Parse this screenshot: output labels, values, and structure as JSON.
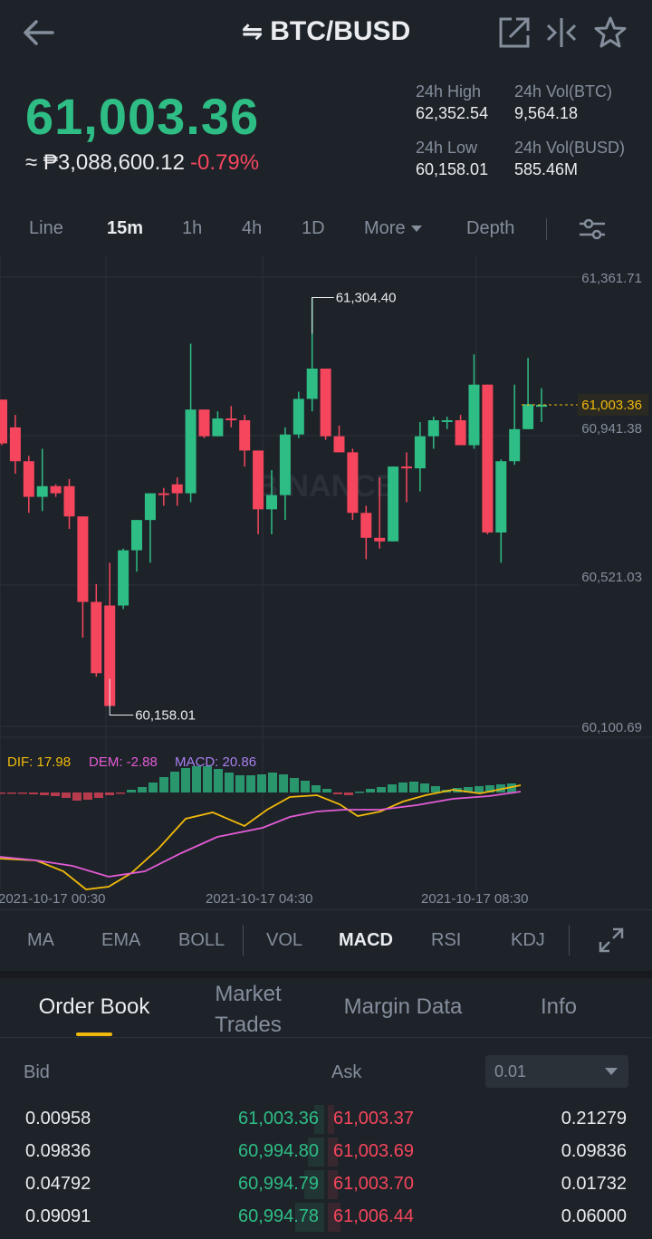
{
  "header": {
    "title": "BTC/BUSD",
    "icons": [
      "back-arrow-icon",
      "swap-icon",
      "external-link-icon",
      "compare-icon",
      "star-icon"
    ]
  },
  "price": {
    "last": "61,003.36",
    "fiat": "≈ ₱3,088,600.12",
    "change": "-0.79%",
    "high_label": "24h High",
    "high": "62,352.54",
    "low_label": "24h Low",
    "low": "60,158.01",
    "vol_btc_label": "24h Vol(BTC)",
    "vol_btc": "9,564.18",
    "vol_busd_label": "24h Vol(BUSD)",
    "vol_busd": "585.46M"
  },
  "intervals": [
    "Line",
    "15m",
    "1h",
    "4h",
    "1D",
    "More",
    "Depth"
  ],
  "active_interval": "15m",
  "chart_data": {
    "type": "candlestick",
    "watermark": "BINANCE",
    "price_ticks": [
      "61,361.71",
      "60,941.38",
      "60,521.03",
      "60,100.69"
    ],
    "current_price": "61,003.36",
    "high_annotation": "61,304.40",
    "low_annotation": "60,158.01",
    "candles": [
      {
        "o": 61018,
        "h": 61018,
        "l": 60890,
        "c": 60895
      },
      {
        "o": 60940,
        "h": 60975,
        "l": 60810,
        "c": 60845
      },
      {
        "o": 60845,
        "h": 60860,
        "l": 60700,
        "c": 60745
      },
      {
        "o": 60745,
        "h": 60880,
        "l": 60705,
        "c": 60775
      },
      {
        "o": 60775,
        "h": 60780,
        "l": 60745,
        "c": 60755
      },
      {
        "o": 60775,
        "h": 60795,
        "l": 60655,
        "c": 60690
      },
      {
        "o": 60690,
        "h": 60690,
        "l": 60350,
        "c": 60450
      },
      {
        "o": 60450,
        "h": 60500,
        "l": 60240,
        "c": 60250
      },
      {
        "o": 60440,
        "h": 60560,
        "l": 60158,
        "c": 60158
      },
      {
        "o": 60440,
        "h": 60600,
        "l": 60430,
        "c": 60595
      },
      {
        "o": 60595,
        "h": 60680,
        "l": 60535,
        "c": 60680
      },
      {
        "o": 60680,
        "h": 60750,
        "l": 60560,
        "c": 60755
      },
      {
        "o": 60755,
        "h": 60770,
        "l": 60720,
        "c": 60750
      },
      {
        "o": 60780,
        "h": 60800,
        "l": 60720,
        "c": 60755
      },
      {
        "o": 60755,
        "h": 61175,
        "l": 60730,
        "c": 60990
      },
      {
        "o": 60990,
        "h": 60990,
        "l": 60910,
        "c": 60915
      },
      {
        "o": 60915,
        "h": 60985,
        "l": 60915,
        "c": 60965
      },
      {
        "o": 60965,
        "h": 61000,
        "l": 60940,
        "c": 60960
      },
      {
        "o": 60960,
        "h": 60975,
        "l": 60830,
        "c": 60875
      },
      {
        "o": 60875,
        "h": 60875,
        "l": 60640,
        "c": 60710
      },
      {
        "o": 60710,
        "h": 60820,
        "l": 60640,
        "c": 60750
      },
      {
        "o": 60750,
        "h": 60940,
        "l": 60680,
        "c": 60920
      },
      {
        "o": 60920,
        "h": 61040,
        "l": 60910,
        "c": 61020
      },
      {
        "o": 61020,
        "h": 61304,
        "l": 60985,
        "c": 61105
      },
      {
        "o": 61105,
        "h": 61105,
        "l": 60905,
        "c": 60915
      },
      {
        "o": 60915,
        "h": 60945,
        "l": 60870,
        "c": 60870
      },
      {
        "o": 60870,
        "h": 60880,
        "l": 60680,
        "c": 60700
      },
      {
        "o": 60700,
        "h": 60720,
        "l": 60570,
        "c": 60630
      },
      {
        "o": 60630,
        "h": 60800,
        "l": 60600,
        "c": 60620
      },
      {
        "o": 60620,
        "h": 60830,
        "l": 60620,
        "c": 60830
      },
      {
        "o": 60830,
        "h": 60870,
        "l": 60730,
        "c": 60825
      },
      {
        "o": 60825,
        "h": 60955,
        "l": 60760,
        "c": 60915
      },
      {
        "o": 60915,
        "h": 60970,
        "l": 60880,
        "c": 60960
      },
      {
        "o": 60960,
        "h": 60970,
        "l": 60935,
        "c": 60960
      },
      {
        "o": 60960,
        "h": 60975,
        "l": 60890,
        "c": 60890
      },
      {
        "o": 60890,
        "h": 61145,
        "l": 60880,
        "c": 61060
      },
      {
        "o": 61060,
        "h": 61060,
        "l": 60640,
        "c": 60645
      },
      {
        "o": 60645,
        "h": 60850,
        "l": 60560,
        "c": 60845
      },
      {
        "o": 60845,
        "h": 61060,
        "l": 60835,
        "c": 60935
      },
      {
        "o": 60935,
        "h": 61135,
        "l": 60935,
        "c": 61005
      },
      {
        "o": 61003,
        "h": 61050,
        "l": 60955,
        "c": 61003
      }
    ],
    "macd": {
      "dif_label": "DIF: 17.98",
      "dem_label": "DEM: -2.88",
      "macd_label": "MACD: 20.86"
    },
    "x_ticks": [
      "2021-10-17 00:30",
      "2021-10-17 04:30",
      "2021-10-17 08:30"
    ]
  },
  "indicators": [
    "MA",
    "EMA",
    "BOLL",
    "VOL",
    "MACD",
    "RSI",
    "KDJ"
  ],
  "active_indicator": "MACD",
  "order_tabs": [
    "Order Book",
    "Market Trades",
    "Margin Data",
    "Info"
  ],
  "order_tabs_display": [
    "Order Book",
    "Market",
    "Trades",
    "Margin Data",
    "Info"
  ],
  "book": {
    "bid_label": "Bid",
    "ask_label": "Ask",
    "precision": "0.01",
    "rows": [
      {
        "bid_qty": "0.00958",
        "bid_price": "61,003.36",
        "ask_price": "61,003.37",
        "ask_qty": "0.21279",
        "bid_depth": 0.03,
        "ask_depth": 0.02
      },
      {
        "bid_qty": "0.09836",
        "bid_price": "60,994.80",
        "ask_price": "61,003.69",
        "ask_qty": "0.09836",
        "bid_depth": 0.05,
        "ask_depth": 0.03
      },
      {
        "bid_qty": "0.04792",
        "bid_price": "60,994.79",
        "ask_price": "61,003.70",
        "ask_qty": "0.01732",
        "bid_depth": 0.06,
        "ask_depth": 0.03
      },
      {
        "bid_qty": "0.09091",
        "bid_price": "60,994.78",
        "ask_price": "61,006.44",
        "ask_qty": "0.06000",
        "bid_depth": 0.09,
        "ask_depth": 0.04
      }
    ]
  },
  "colors": {
    "up": "#2ebd85",
    "down": "#f6465d",
    "accent": "#f0b90b",
    "dif": "#f0b90b",
    "dem": "#e35bd6",
    "macd": "#a97ff0"
  }
}
